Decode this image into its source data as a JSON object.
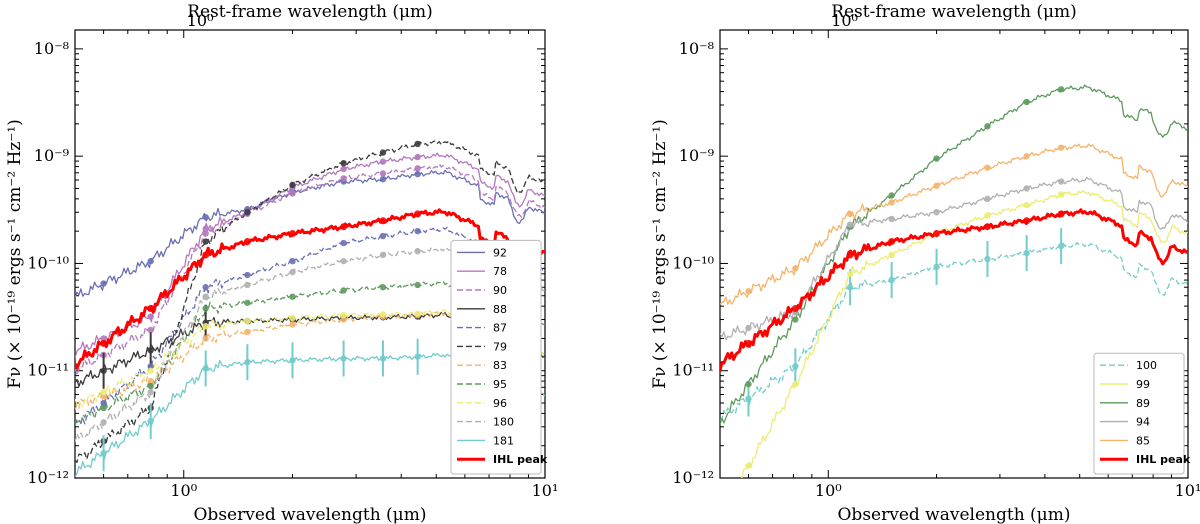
{
  "chart_data": [
    {
      "type": "line",
      "title": "",
      "xlabel": "Observed wavelength (μm)",
      "top_xlabel": "Rest-frame wavelength (μm)",
      "ylabel": "Fν (× 10⁻¹⁹ ergs s⁻¹ cm⁻² Hz⁻¹)",
      "xscale": "log",
      "yscale": "log",
      "xlim": [
        0.5,
        10
      ],
      "ylim": [
        1e-12,
        1.5e-08
      ],
      "x_tick_labels": [
        "10⁰",
        "10¹"
      ],
      "top_tick_labels": [
        "10⁰"
      ],
      "y_tick_labels": [
        "10⁻¹²",
        "10⁻¹¹",
        "10⁻¹⁰",
        "10⁻⁹",
        "10⁻⁸"
      ],
      "legend_position": "lower-right",
      "photometry_x": [
        0.6,
        0.81,
        1.15,
        1.5,
        2.0,
        2.77,
        3.56,
        4.44
      ],
      "series": [
        {
          "name": "92",
          "color": "#6a6fb3",
          "dash": false,
          "values": [
            6.5e-11,
            1.05e-10,
            2.7e-10,
            3.2e-10,
            4.6e-10,
            5.8e-10,
            6.1e-10,
            6.8e-10
          ]
        },
        {
          "name": "78",
          "color": "#b478bf",
          "dash": false,
          "values": [
            2e-11,
            3.2e-11,
            2.1e-10,
            3e-10,
            5.1e-10,
            7.6e-10,
            8.9e-10,
            9.8e-10
          ]
        },
        {
          "name": "90",
          "color": "#b478bf",
          "dash": true,
          "values": [
            1.4e-11,
            2.4e-11,
            1.9e-10,
            2.9e-10,
            4.5e-10,
            6.2e-10,
            6.9e-10,
            7.7e-10
          ]
        },
        {
          "name": "88",
          "color": "#3a3a3a",
          "dash": false,
          "values": [
            1e-11,
            1.55e-11,
            2.8e-11,
            2.9e-11,
            3e-11,
            3.1e-11,
            3.15e-11,
            3.2e-11
          ]
        },
        {
          "name": "87",
          "color": "#6a6fb3",
          "dash": true,
          "values": [
            5e-12,
            1.1e-11,
            6e-11,
            7.8e-11,
            1.05e-10,
            1.55e-10,
            1.8e-10,
            2e-10
          ]
        },
        {
          "name": "79",
          "color": "#3a3a3a",
          "dash": true,
          "values": [
            2.2e-12,
            4.5e-12,
            1.6e-10,
            3e-10,
            5.4e-10,
            8.6e-10,
            1.08e-09,
            1.3e-09
          ]
        },
        {
          "name": "83",
          "color": "#f5b36b",
          "dash": true,
          "values": [
            5.8e-12,
            8e-12,
            2e-11,
            2.3e-11,
            2.7e-11,
            3e-11,
            3.2e-11,
            3.3e-11
          ]
        },
        {
          "name": "95",
          "color": "#5d9a5d",
          "dash": true,
          "values": [
            4.5e-12,
            7.2e-12,
            3.8e-11,
            4.3e-11,
            4.9e-11,
            5.6e-11,
            6e-11,
            6.3e-11
          ]
        },
        {
          "name": "96",
          "color": "#ecec72",
          "dash": true,
          "values": [
            6.3e-12,
            1e-11,
            2.6e-11,
            2.9e-11,
            3.1e-11,
            3.3e-11,
            3.35e-11,
            3.4e-11
          ]
        },
        {
          "name": "180",
          "color": "#b0b0b0",
          "dash": true,
          "values": [
            3.3e-12,
            6.3e-12,
            4.9e-11,
            6.3e-11,
            8.3e-11,
            1.05e-10,
            1.2e-10,
            1.3e-10
          ]
        },
        {
          "name": "181",
          "color": "#72cccc",
          "dash": false,
          "values": [
            1.7e-12,
            3.4e-12,
            1.05e-11,
            1.2e-11,
            1.25e-11,
            1.3e-11,
            1.3e-11,
            1.35e-11
          ]
        },
        {
          "name": "IHL peak",
          "color": "#ff0000",
          "dash": false,
          "bold": true,
          "values": [
            1.8e-11,
            3.8e-11,
            1.2e-10,
            1.6e-10,
            1.9e-10,
            2.2e-10,
            2.5e-10,
            2.9e-10
          ]
        }
      ]
    },
    {
      "type": "line",
      "title": "",
      "xlabel": "Observed wavelength (μm)",
      "top_xlabel": "Rest-frame wavelength (μm)",
      "ylabel": "Fν (× 10⁻¹⁹ ergs s⁻¹ cm⁻² Hz⁻¹)",
      "xscale": "log",
      "yscale": "log",
      "xlim": [
        0.5,
        10
      ],
      "ylim": [
        1e-12,
        1.5e-08
      ],
      "x_tick_labels": [
        "10⁰",
        "10¹"
      ],
      "top_tick_labels": [
        "10⁰"
      ],
      "y_tick_labels": [
        "10⁻¹²",
        "10⁻¹¹",
        "10⁻¹⁰",
        "10⁻⁹",
        "10⁻⁸"
      ],
      "legend_position": "lower-right",
      "photometry_x": [
        0.6,
        0.81,
        1.15,
        1.5,
        2.0,
        2.77,
        3.56,
        4.44
      ],
      "series": [
        {
          "name": "100",
          "color": "#72cccc",
          "dash": true,
          "values": [
            5.5e-12,
            1.1e-11,
            6e-11,
            7e-11,
            9.3e-11,
            1.1e-10,
            1.25e-10,
            1.45e-10
          ]
        },
        {
          "name": "99",
          "color": "#ecec72",
          "dash": false,
          "values": [
            1.3e-12,
            7.5e-12,
            8e-11,
            1.2e-10,
            1.9e-10,
            2.8e-10,
            3.5e-10,
            4.4e-10
          ]
        },
        {
          "name": "89",
          "color": "#5d9a5d",
          "dash": false,
          "values": [
            7.5e-12,
            3e-11,
            2.2e-10,
            4.3e-10,
            9.5e-10,
            1.9e-09,
            3.2e-09,
            4.2e-09
          ]
        },
        {
          "name": "94",
          "color": "#b0b0b0",
          "dash": false,
          "values": [
            2.5e-11,
            3.5e-11,
            2.3e-10,
            2.6e-10,
            3e-10,
            4e-10,
            5e-10,
            5.8e-10
          ]
        },
        {
          "name": "85",
          "color": "#f5b36b",
          "dash": false,
          "values": [
            5.5e-11,
            9e-11,
            2.9e-10,
            3.7e-10,
            5.3e-10,
            7.8e-10,
            1e-09,
            1.2e-09
          ]
        },
        {
          "name": "IHL peak",
          "color": "#ff0000",
          "dash": false,
          "bold": true,
          "values": [
            1.8e-11,
            3.8e-11,
            1.2e-10,
            1.6e-10,
            1.9e-10,
            2.2e-10,
            2.5e-10,
            2.9e-10
          ]
        }
      ]
    }
  ]
}
